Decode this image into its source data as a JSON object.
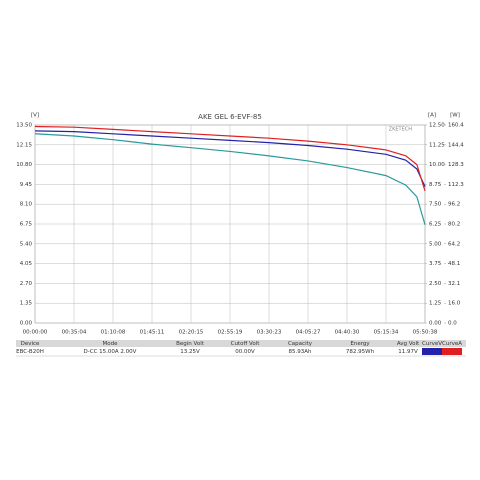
{
  "chart_data": {
    "type": "line",
    "title": "AKE GEL 6-EVF-85",
    "watermark": "ZKETECH",
    "y_unit": "[V]",
    "y2_unit": "[A]",
    "y3_unit": "[W]",
    "x": [
      0,
      2104,
      4208,
      6311,
      8415,
      10519,
      12623,
      14727,
      16830,
      18934,
      20000,
      20600,
      21038
    ],
    "xlim": [
      0,
      21038
    ],
    "xticks": [
      {
        "value": 0,
        "label": "00:00:00"
      },
      {
        "value": 2104,
        "label": "00:35:04"
      },
      {
        "value": 4208,
        "label": "01:10:08"
      },
      {
        "value": 6311,
        "label": "01:45:11"
      },
      {
        "value": 8415,
        "label": "02:20:15"
      },
      {
        "value": 10519,
        "label": "02:55:19"
      },
      {
        "value": 12623,
        "label": "03:30:23"
      },
      {
        "value": 14727,
        "label": "04:05:27"
      },
      {
        "value": 16830,
        "label": "04:40:30"
      },
      {
        "value": 18934,
        "label": "05:15:34"
      },
      {
        "value": 21038,
        "label": "05:50:38"
      }
    ],
    "ylim": [
      0,
      13.5
    ],
    "yticks": [
      {
        "value": 0,
        "label": "0.00"
      },
      1.35,
      {
        "value": 2.7,
        "label": "2.70"
      },
      4.05,
      {
        "value": 5.4,
        "label": "5.40"
      },
      6.75,
      {
        "value": 8.1,
        "label": "8.10"
      },
      9.45,
      {
        "value": 10.8,
        "label": "10.80"
      },
      12.15,
      {
        "value": 13.5,
        "label": "13.50"
      }
    ],
    "y2lim": [
      0,
      12.5
    ],
    "y2ticks": [
      {
        "value": 0,
        "label": "0.00"
      },
      1.25,
      {
        "value": 2.5,
        "label": "2.50"
      },
      3.75,
      {
        "value": 5,
        "label": "5.00"
      },
      6.25,
      {
        "value": 7.5,
        "label": "7.50"
      },
      8.75,
      {
        "value": 10,
        "label": "10.00"
      },
      11.25,
      {
        "value": 12.5,
        "label": "12.50"
      }
    ],
    "y3lim": [
      0,
      160.4
    ],
    "y3ticks": [
      {
        "value": 0,
        "label": "0.0"
      },
      {
        "value": 16.04,
        "label": "16.0"
      },
      {
        "value": 32.08,
        "label": "32.1"
      },
      {
        "value": 48.12,
        "label": "48.1"
      },
      {
        "value": 64.16,
        "label": "64.2"
      },
      80.2,
      {
        "value": 96.24,
        "label": "96.2"
      },
      {
        "value": 112.28,
        "label": "112.3"
      },
      {
        "value": 128.32,
        "label": "128.3"
      },
      {
        "value": 144.36,
        "label": "144.4"
      },
      160.4
    ],
    "grid": true,
    "series": [
      {
        "name": "CurveV",
        "color": "#2222aa",
        "axis": "y",
        "values": [
          13.1,
          13.05,
          12.9,
          12.75,
          12.6,
          12.45,
          12.3,
          12.1,
          11.85,
          11.5,
          11.1,
          10.5,
          9.3
        ]
      },
      {
        "name": "CurveA",
        "color": "#e02020",
        "axis": "y",
        "values": [
          13.4,
          13.35,
          13.2,
          13.05,
          12.9,
          12.75,
          12.6,
          12.4,
          12.15,
          11.8,
          11.4,
          10.8,
          9.0
        ]
      },
      {
        "color": "#2a9a9a",
        "axis": "y3",
        "values": [
          153.3,
          151.5,
          148.5,
          144.9,
          142.0,
          139.0,
          135.4,
          131.3,
          125.9,
          119.4,
          111.7,
          102.2,
          79.6
        ]
      }
    ]
  },
  "table": {
    "header": [
      "Device",
      "Mode",
      "Begin Volt",
      "Cutoff Volt",
      "Capacity",
      "Energy",
      "Avg Volt",
      "CurveV",
      "CurveA"
    ],
    "row": [
      "EBC-B20H",
      "D-CC 15.00A 2.00V",
      "13.25V",
      "00.00V",
      "85.93Ah",
      "782.95Wh",
      "11.97V"
    ]
  }
}
